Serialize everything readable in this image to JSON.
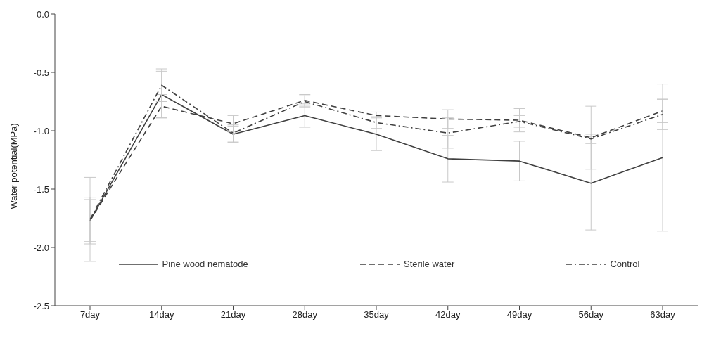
{
  "chart_data": {
    "type": "line",
    "ylabel": "Water potential(MPa)",
    "categories": [
      "7day",
      "14day",
      "21day",
      "28day",
      "35day",
      "42day",
      "49day",
      "56day",
      "63day"
    ],
    "series": [
      {
        "name": "Pine wood nematode",
        "color": "#404040",
        "line_style": "solid",
        "values": [
          -1.77,
          -0.69,
          -1.03,
          -0.87,
          -1.03,
          -1.24,
          -1.26,
          -1.45,
          -1.23
        ],
        "errors": [
          0.2,
          0.2,
          0.07,
          0.1,
          0.14,
          0.2,
          0.17,
          0.4,
          0.63
        ]
      },
      {
        "name": "Sterile water",
        "color": "#404040",
        "line_style": "dashed",
        "values": [
          -1.77,
          -0.79,
          -0.94,
          -0.74,
          -0.87,
          -0.9,
          -0.91,
          -1.06,
          -0.83
        ],
        "errors": [
          0.18,
          0.1,
          0.07,
          0.05,
          0.03,
          0.08,
          0.1,
          0.27,
          0.1
        ]
      },
      {
        "name": "Control",
        "color": "#404040",
        "line_style": "dashdot",
        "values": [
          -1.76,
          -0.61,
          -1.02,
          -0.75,
          -0.93,
          -1.02,
          -0.92,
          -1.07,
          -0.86
        ],
        "errors": [
          0.36,
          0.14,
          0.07,
          0.05,
          0.05,
          0.13,
          0.05,
          0.04,
          0.13
        ]
      }
    ],
    "ylim": [
      -2.5,
      0
    ],
    "yticks": [
      {
        "value": -2.5,
        "label": "-2.5"
      },
      {
        "value": -2,
        "label": "-2.0"
      },
      {
        "value": -1.5,
        "label": "-1.5"
      },
      {
        "value": -1,
        "label": "-1.0"
      },
      {
        "value": -0.5,
        "label": "-0.5"
      },
      {
        "value": 0,
        "label": "0.0"
      }
    ],
    "grid": false,
    "legend": "bottom",
    "marker": "none"
  }
}
